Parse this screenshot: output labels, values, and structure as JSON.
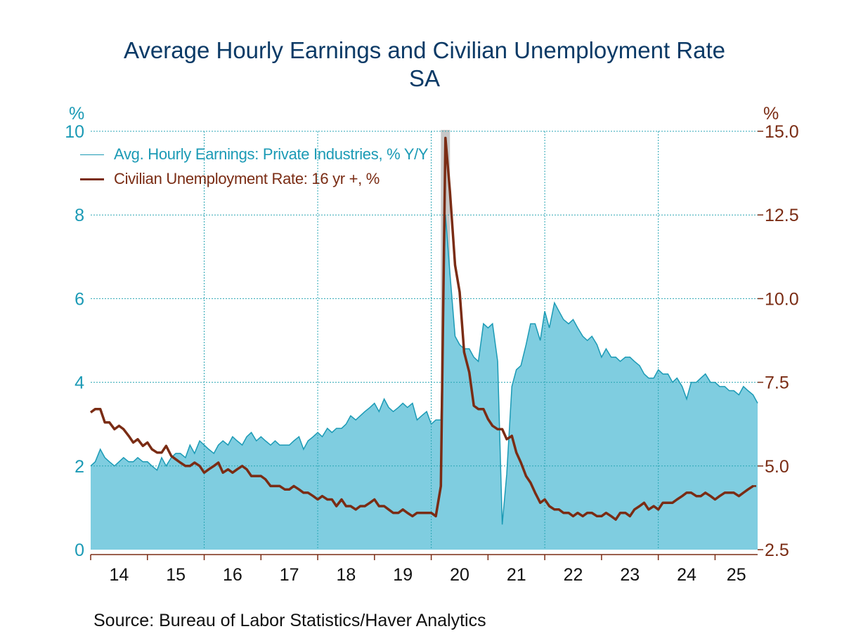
{
  "title": "Average Hourly Earnings and Civilian Unemployment Rate",
  "subtitle": "SA",
  "source": "Source:  Bureau of Labor Statistics/Haver Analytics",
  "colors": {
    "earnings_fill": "#7fcde0",
    "earnings_line": "#1b9ab5",
    "unemployment": "#7a2c14",
    "grid": "#2aa6b4",
    "recession": "#c8c8c8",
    "axis": "#7a2c14"
  },
  "chart_data": {
    "type": "area",
    "x_unit": "year (2-digit), monthly observations",
    "left_axis": {
      "unit": "%",
      "range": [
        0,
        10
      ],
      "ticks": [
        "0",
        "2",
        "4",
        "6",
        "8",
        "10"
      ]
    },
    "right_axis": {
      "unit": "%",
      "range": [
        2.5,
        15.0
      ],
      "ticks": [
        "2.5",
        "5.0",
        "7.5",
        "10.0",
        "12.5",
        "15.0"
      ]
    },
    "x_range": [
      2014.0,
      2025.75
    ],
    "x_ticks": [
      "14",
      "15",
      "16",
      "17",
      "18",
      "19",
      "20",
      "21",
      "22",
      "23",
      "24",
      "25"
    ],
    "recession": {
      "start": 2020.17,
      "end": 2020.33
    },
    "legend": [
      "Avg. Hourly Earnings: Private Industries, % Y/Y",
      "Civilian Unemployment Rate: 16 yr +, %"
    ],
    "series": [
      {
        "name": "Avg. Hourly Earnings: Private Industries, % Y/Y",
        "axis": "left",
        "type": "area",
        "points": [
          [
            2014.0,
            2.0
          ],
          [
            2014.08,
            2.1
          ],
          [
            2014.17,
            2.4
          ],
          [
            2014.25,
            2.2
          ],
          [
            2014.33,
            2.1
          ],
          [
            2014.42,
            2.0
          ],
          [
            2014.5,
            2.1
          ],
          [
            2014.58,
            2.2
          ],
          [
            2014.67,
            2.1
          ],
          [
            2014.75,
            2.1
          ],
          [
            2014.83,
            2.2
          ],
          [
            2014.92,
            2.1
          ],
          [
            2015.0,
            2.1
          ],
          [
            2015.08,
            2.0
          ],
          [
            2015.17,
            1.9
          ],
          [
            2015.25,
            2.2
          ],
          [
            2015.33,
            2.0
          ],
          [
            2015.42,
            2.2
          ],
          [
            2015.5,
            2.3
          ],
          [
            2015.58,
            2.3
          ],
          [
            2015.67,
            2.2
          ],
          [
            2015.75,
            2.5
          ],
          [
            2015.83,
            2.3
          ],
          [
            2015.92,
            2.6
          ],
          [
            2016.0,
            2.5
          ],
          [
            2016.08,
            2.4
          ],
          [
            2016.17,
            2.3
          ],
          [
            2016.25,
            2.5
          ],
          [
            2016.33,
            2.6
          ],
          [
            2016.42,
            2.5
          ],
          [
            2016.5,
            2.7
          ],
          [
            2016.58,
            2.6
          ],
          [
            2016.67,
            2.5
          ],
          [
            2016.75,
            2.7
          ],
          [
            2016.83,
            2.8
          ],
          [
            2016.92,
            2.6
          ],
          [
            2017.0,
            2.7
          ],
          [
            2017.08,
            2.6
          ],
          [
            2017.17,
            2.5
          ],
          [
            2017.25,
            2.6
          ],
          [
            2017.33,
            2.5
          ],
          [
            2017.42,
            2.5
          ],
          [
            2017.5,
            2.5
          ],
          [
            2017.58,
            2.6
          ],
          [
            2017.67,
            2.7
          ],
          [
            2017.75,
            2.4
          ],
          [
            2017.83,
            2.6
          ],
          [
            2017.92,
            2.7
          ],
          [
            2018.0,
            2.8
          ],
          [
            2018.08,
            2.7
          ],
          [
            2018.17,
            2.9
          ],
          [
            2018.25,
            2.8
          ],
          [
            2018.33,
            2.9
          ],
          [
            2018.42,
            2.9
          ],
          [
            2018.5,
            3.0
          ],
          [
            2018.58,
            3.2
          ],
          [
            2018.67,
            3.1
          ],
          [
            2018.75,
            3.2
          ],
          [
            2018.83,
            3.3
          ],
          [
            2018.92,
            3.4
          ],
          [
            2019.0,
            3.5
          ],
          [
            2019.08,
            3.3
          ],
          [
            2019.17,
            3.6
          ],
          [
            2019.25,
            3.4
          ],
          [
            2019.33,
            3.3
          ],
          [
            2019.42,
            3.4
          ],
          [
            2019.5,
            3.5
          ],
          [
            2019.58,
            3.4
          ],
          [
            2019.67,
            3.5
          ],
          [
            2019.75,
            3.1
          ],
          [
            2019.83,
            3.2
          ],
          [
            2019.92,
            3.3
          ],
          [
            2020.0,
            3.0
          ],
          [
            2020.08,
            3.1
          ],
          [
            2020.17,
            3.1
          ],
          [
            2020.25,
            8.0
          ],
          [
            2020.33,
            6.6
          ],
          [
            2020.42,
            5.1
          ],
          [
            2020.5,
            4.9
          ],
          [
            2020.58,
            4.8
          ],
          [
            2020.67,
            4.8
          ],
          [
            2020.75,
            4.6
          ],
          [
            2020.83,
            4.5
          ],
          [
            2020.92,
            5.4
          ],
          [
            2021.0,
            5.3
          ],
          [
            2021.08,
            5.4
          ],
          [
            2021.17,
            4.5
          ],
          [
            2021.25,
            0.6
          ],
          [
            2021.33,
            1.8
          ],
          [
            2021.42,
            3.9
          ],
          [
            2021.5,
            4.3
          ],
          [
            2021.58,
            4.4
          ],
          [
            2021.67,
            4.9
          ],
          [
            2021.75,
            5.4
          ],
          [
            2021.83,
            5.4
          ],
          [
            2021.92,
            5.0
          ],
          [
            2022.0,
            5.7
          ],
          [
            2022.08,
            5.3
          ],
          [
            2022.17,
            5.9
          ],
          [
            2022.25,
            5.7
          ],
          [
            2022.33,
            5.5
          ],
          [
            2022.42,
            5.4
          ],
          [
            2022.5,
            5.5
          ],
          [
            2022.58,
            5.3
          ],
          [
            2022.67,
            5.1
          ],
          [
            2022.75,
            5.0
          ],
          [
            2022.83,
            5.1
          ],
          [
            2022.92,
            4.9
          ],
          [
            2023.0,
            4.6
          ],
          [
            2023.08,
            4.8
          ],
          [
            2023.17,
            4.6
          ],
          [
            2023.25,
            4.6
          ],
          [
            2023.33,
            4.5
          ],
          [
            2023.42,
            4.6
          ],
          [
            2023.5,
            4.6
          ],
          [
            2023.58,
            4.5
          ],
          [
            2023.67,
            4.4
          ],
          [
            2023.75,
            4.2
          ],
          [
            2023.83,
            4.1
          ],
          [
            2023.92,
            4.1
          ],
          [
            2024.0,
            4.3
          ],
          [
            2024.08,
            4.2
          ],
          [
            2024.17,
            4.2
          ],
          [
            2024.25,
            4.0
          ],
          [
            2024.33,
            4.1
          ],
          [
            2024.42,
            3.9
          ],
          [
            2024.5,
            3.6
          ],
          [
            2024.58,
            4.0
          ],
          [
            2024.67,
            4.0
          ],
          [
            2024.75,
            4.1
          ],
          [
            2024.83,
            4.2
          ],
          [
            2024.92,
            4.0
          ],
          [
            2025.0,
            4.0
          ],
          [
            2025.08,
            3.9
          ],
          [
            2025.17,
            3.9
          ],
          [
            2025.25,
            3.8
          ],
          [
            2025.33,
            3.8
          ],
          [
            2025.42,
            3.7
          ],
          [
            2025.5,
            3.9
          ],
          [
            2025.58,
            3.8
          ],
          [
            2025.67,
            3.7
          ],
          [
            2025.75,
            3.5
          ]
        ]
      },
      {
        "name": "Civilian Unemployment Rate: 16 yr +, %",
        "axis": "right",
        "type": "line",
        "points": [
          [
            2014.0,
            6.6
          ],
          [
            2014.08,
            6.7
          ],
          [
            2014.17,
            6.7
          ],
          [
            2014.25,
            6.3
          ],
          [
            2014.33,
            6.3
          ],
          [
            2014.42,
            6.1
          ],
          [
            2014.5,
            6.2
          ],
          [
            2014.58,
            6.1
          ],
          [
            2014.67,
            5.9
          ],
          [
            2014.75,
            5.7
          ],
          [
            2014.83,
            5.8
          ],
          [
            2014.92,
            5.6
          ],
          [
            2015.0,
            5.7
          ],
          [
            2015.08,
            5.5
          ],
          [
            2015.17,
            5.4
          ],
          [
            2015.25,
            5.4
          ],
          [
            2015.33,
            5.6
          ],
          [
            2015.42,
            5.3
          ],
          [
            2015.5,
            5.2
          ],
          [
            2015.58,
            5.1
          ],
          [
            2015.67,
            5.0
          ],
          [
            2015.75,
            5.0
          ],
          [
            2015.83,
            5.1
          ],
          [
            2015.92,
            5.0
          ],
          [
            2016.0,
            4.8
          ],
          [
            2016.08,
            4.9
          ],
          [
            2016.17,
            5.0
          ],
          [
            2016.25,
            5.1
          ],
          [
            2016.33,
            4.8
          ],
          [
            2016.42,
            4.9
          ],
          [
            2016.5,
            4.8
          ],
          [
            2016.58,
            4.9
          ],
          [
            2016.67,
            5.0
          ],
          [
            2016.75,
            4.9
          ],
          [
            2016.83,
            4.7
          ],
          [
            2016.92,
            4.7
          ],
          [
            2017.0,
            4.7
          ],
          [
            2017.08,
            4.6
          ],
          [
            2017.17,
            4.4
          ],
          [
            2017.25,
            4.4
          ],
          [
            2017.33,
            4.4
          ],
          [
            2017.42,
            4.3
          ],
          [
            2017.5,
            4.3
          ],
          [
            2017.58,
            4.4
          ],
          [
            2017.67,
            4.3
          ],
          [
            2017.75,
            4.2
          ],
          [
            2017.83,
            4.2
          ],
          [
            2017.92,
            4.1
          ],
          [
            2018.0,
            4.0
          ],
          [
            2018.08,
            4.1
          ],
          [
            2018.17,
            4.0
          ],
          [
            2018.25,
            4.0
          ],
          [
            2018.33,
            3.8
          ],
          [
            2018.42,
            4.0
          ],
          [
            2018.5,
            3.8
          ],
          [
            2018.58,
            3.8
          ],
          [
            2018.67,
            3.7
          ],
          [
            2018.75,
            3.8
          ],
          [
            2018.83,
            3.8
          ],
          [
            2018.92,
            3.9
          ],
          [
            2019.0,
            4.0
          ],
          [
            2019.08,
            3.8
          ],
          [
            2019.17,
            3.8
          ],
          [
            2019.25,
            3.7
          ],
          [
            2019.33,
            3.6
          ],
          [
            2019.42,
            3.6
          ],
          [
            2019.5,
            3.7
          ],
          [
            2019.58,
            3.6
          ],
          [
            2019.67,
            3.5
          ],
          [
            2019.75,
            3.6
          ],
          [
            2019.83,
            3.6
          ],
          [
            2019.92,
            3.6
          ],
          [
            2020.0,
            3.6
          ],
          [
            2020.08,
            3.5
          ],
          [
            2020.17,
            4.4
          ],
          [
            2020.25,
            14.8
          ],
          [
            2020.33,
            13.2
          ],
          [
            2020.42,
            11.0
          ],
          [
            2020.5,
            10.2
          ],
          [
            2020.58,
            8.4
          ],
          [
            2020.67,
            7.8
          ],
          [
            2020.75,
            6.8
          ],
          [
            2020.83,
            6.7
          ],
          [
            2020.92,
            6.7
          ],
          [
            2021.0,
            6.4
          ],
          [
            2021.08,
            6.2
          ],
          [
            2021.17,
            6.1
          ],
          [
            2021.25,
            6.1
          ],
          [
            2021.33,
            5.8
          ],
          [
            2021.42,
            5.9
          ],
          [
            2021.5,
            5.4
          ],
          [
            2021.58,
            5.1
          ],
          [
            2021.67,
            4.7
          ],
          [
            2021.75,
            4.5
          ],
          [
            2021.83,
            4.2
          ],
          [
            2021.92,
            3.9
          ],
          [
            2022.0,
            4.0
          ],
          [
            2022.08,
            3.8
          ],
          [
            2022.17,
            3.7
          ],
          [
            2022.25,
            3.7
          ],
          [
            2022.33,
            3.6
          ],
          [
            2022.42,
            3.6
          ],
          [
            2022.5,
            3.5
          ],
          [
            2022.58,
            3.6
          ],
          [
            2022.67,
            3.5
          ],
          [
            2022.75,
            3.6
          ],
          [
            2022.83,
            3.6
          ],
          [
            2022.92,
            3.5
          ],
          [
            2023.0,
            3.5
          ],
          [
            2023.08,
            3.6
          ],
          [
            2023.17,
            3.5
          ],
          [
            2023.25,
            3.4
          ],
          [
            2023.33,
            3.6
          ],
          [
            2023.42,
            3.6
          ],
          [
            2023.5,
            3.5
          ],
          [
            2023.58,
            3.7
          ],
          [
            2023.67,
            3.8
          ],
          [
            2023.75,
            3.9
          ],
          [
            2023.83,
            3.7
          ],
          [
            2023.92,
            3.8
          ],
          [
            2024.0,
            3.7
          ],
          [
            2024.08,
            3.9
          ],
          [
            2024.17,
            3.9
          ],
          [
            2024.25,
            3.9
          ],
          [
            2024.33,
            4.0
          ],
          [
            2024.42,
            4.1
          ],
          [
            2024.5,
            4.2
          ],
          [
            2024.58,
            4.2
          ],
          [
            2024.67,
            4.1
          ],
          [
            2024.75,
            4.1
          ],
          [
            2024.83,
            4.2
          ],
          [
            2024.92,
            4.1
          ],
          [
            2025.0,
            4.0
          ],
          [
            2025.08,
            4.1
          ],
          [
            2025.17,
            4.2
          ],
          [
            2025.25,
            4.2
          ],
          [
            2025.33,
            4.2
          ],
          [
            2025.42,
            4.1
          ],
          [
            2025.5,
            4.2
          ],
          [
            2025.58,
            4.3
          ],
          [
            2025.67,
            4.4
          ]
        ]
      }
    ]
  }
}
